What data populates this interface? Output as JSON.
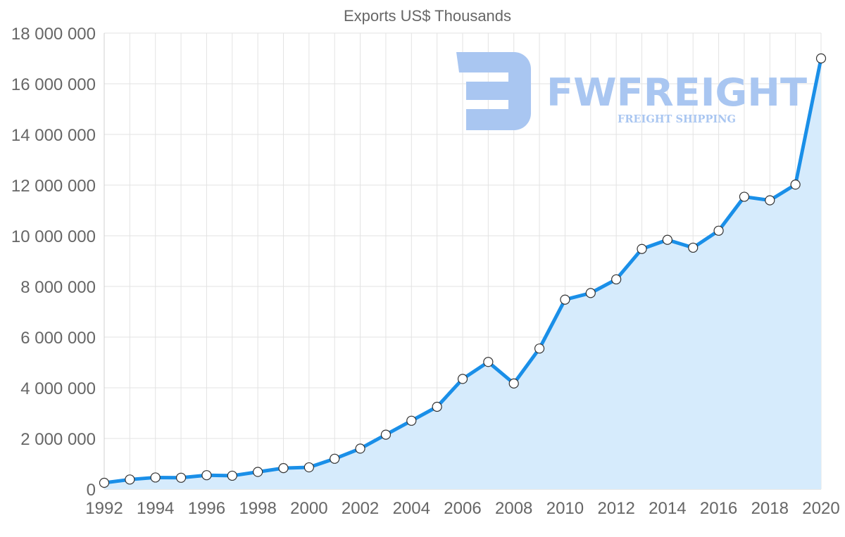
{
  "chart_data": {
    "type": "area",
    "title": "Exports US$ Thousands",
    "xlabel": "",
    "ylabel": "",
    "ylim": [
      0,
      18000000
    ],
    "y_ticks": [
      {
        "value": 0,
        "label": "0"
      },
      {
        "value": 2000000,
        "label": "2 000 000"
      },
      {
        "value": 4000000,
        "label": "4 000 000"
      },
      {
        "value": 6000000,
        "label": "6 000 000"
      },
      {
        "value": 8000000,
        "label": "8 000 000"
      },
      {
        "value": 10000000,
        "label": "10 000 000"
      },
      {
        "value": 12000000,
        "label": "12 000 000"
      },
      {
        "value": 14000000,
        "label": "14 000 000"
      },
      {
        "value": 16000000,
        "label": "16 000 000"
      },
      {
        "value": 18000000,
        "label": "18 000 000"
      }
    ],
    "x_tick_labels": [
      "1992",
      "1994",
      "1996",
      "1998",
      "2000",
      "2002",
      "2004",
      "2006",
      "2008",
      "2010",
      "2012",
      "2014",
      "2016",
      "2018",
      "2020"
    ],
    "grid": true,
    "legend": "none",
    "series": [
      {
        "name": "Exports US$ Thousands",
        "line_color": "#1a8fe8",
        "fill_color": "#d6ebfc",
        "x": [
          1992,
          1993,
          1994,
          1995,
          1996,
          1997,
          1998,
          1999,
          2000,
          2001,
          2002,
          2003,
          2004,
          2005,
          2006,
          2007,
          2008,
          2009,
          2010,
          2011,
          2012,
          2013,
          2014,
          2015,
          2016,
          2017,
          2018,
          2019,
          2020
        ],
        "values": [
          250000,
          380000,
          460000,
          450000,
          550000,
          530000,
          680000,
          830000,
          860000,
          1200000,
          1600000,
          2150000,
          2700000,
          3250000,
          4350000,
          5020000,
          4170000,
          5550000,
          7480000,
          7740000,
          8280000,
          9480000,
          9840000,
          9530000,
          10200000,
          11540000,
          11400000,
          12020000,
          17000000
        ]
      }
    ]
  },
  "watermark": {
    "brand": "FWFREIGHT",
    "tagline": "FREIGHT SHIPPING",
    "color": "#a9c6f1"
  }
}
